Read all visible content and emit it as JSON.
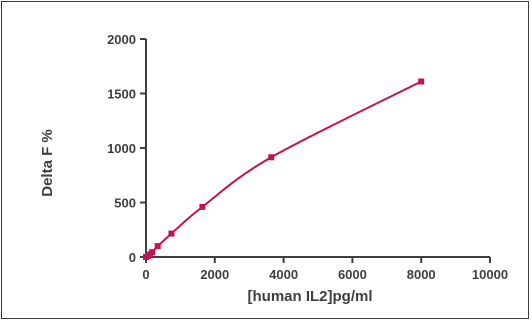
{
  "chart_data": {
    "type": "scatter",
    "title": "",
    "xlabel": "[human IL2]pg/ml",
    "ylabel": "Delta F %",
    "xlim": [
      0,
      10000
    ],
    "ylim": [
      0,
      2000
    ],
    "x_ticks": [
      0,
      2000,
      4000,
      6000,
      8000,
      10000
    ],
    "y_ticks": [
      0,
      500,
      1000,
      1500,
      2000
    ],
    "grid": false,
    "legend": "none",
    "series": [
      {
        "points": [
          {
            "x": 0,
            "y": 0
          },
          {
            "x": 61,
            "y": 10
          },
          {
            "x": 123,
            "y": 25
          },
          {
            "x": 180,
            "y": 45
          },
          {
            "x": 340,
            "y": 100
          },
          {
            "x": 740,
            "y": 215
          },
          {
            "x": 1640,
            "y": 460
          },
          {
            "x": 3640,
            "y": 915
          },
          {
            "x": 8000,
            "y": 1610
          }
        ],
        "fit_curve": true,
        "color": "#c4124d",
        "marker": "square"
      }
    ]
  }
}
